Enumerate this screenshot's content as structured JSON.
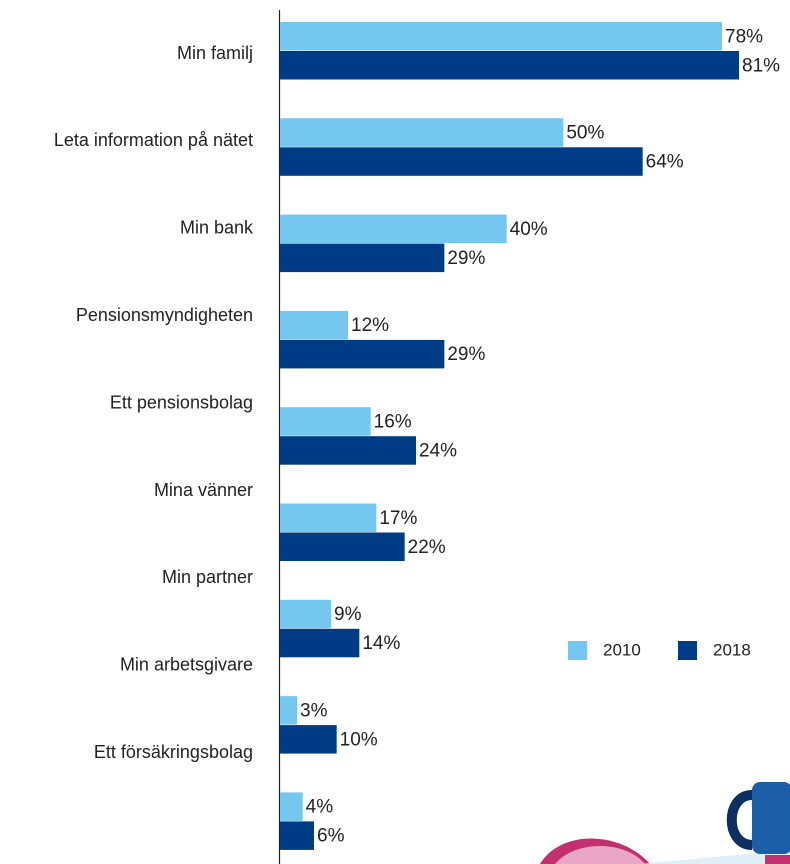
{
  "chart_data": {
    "type": "bar",
    "orientation": "horizontal",
    "categories": [
      "Min familj",
      "Leta information på nätet",
      "Min bank",
      "Pensionsmyndigheten",
      "Ett pensionsbolag",
      "Mina vänner",
      "Min partner",
      "Min arbetsgivare",
      "Ett försäkringsbolag"
    ],
    "series": [
      {
        "name": "2010",
        "color": "#74c7ef",
        "values": [
          78,
          50,
          40,
          12,
          16,
          17,
          9,
          3,
          4
        ],
        "value_labels": [
          "78%",
          "50%",
          "40%",
          "12%",
          "16%",
          "17%",
          "9%",
          "3%",
          "4%"
        ]
      },
      {
        "name": "2018",
        "color": "#003b85",
        "values": [
          81,
          64,
          29,
          29,
          24,
          22,
          14,
          10,
          6
        ],
        "value_labels": [
          "81%",
          "64%",
          "29%",
          "29%",
          "24%",
          "22%",
          "14%",
          "10%",
          "6%"
        ]
      }
    ],
    "xlim": [
      0,
      90
    ],
    "legend": "right"
  }
}
